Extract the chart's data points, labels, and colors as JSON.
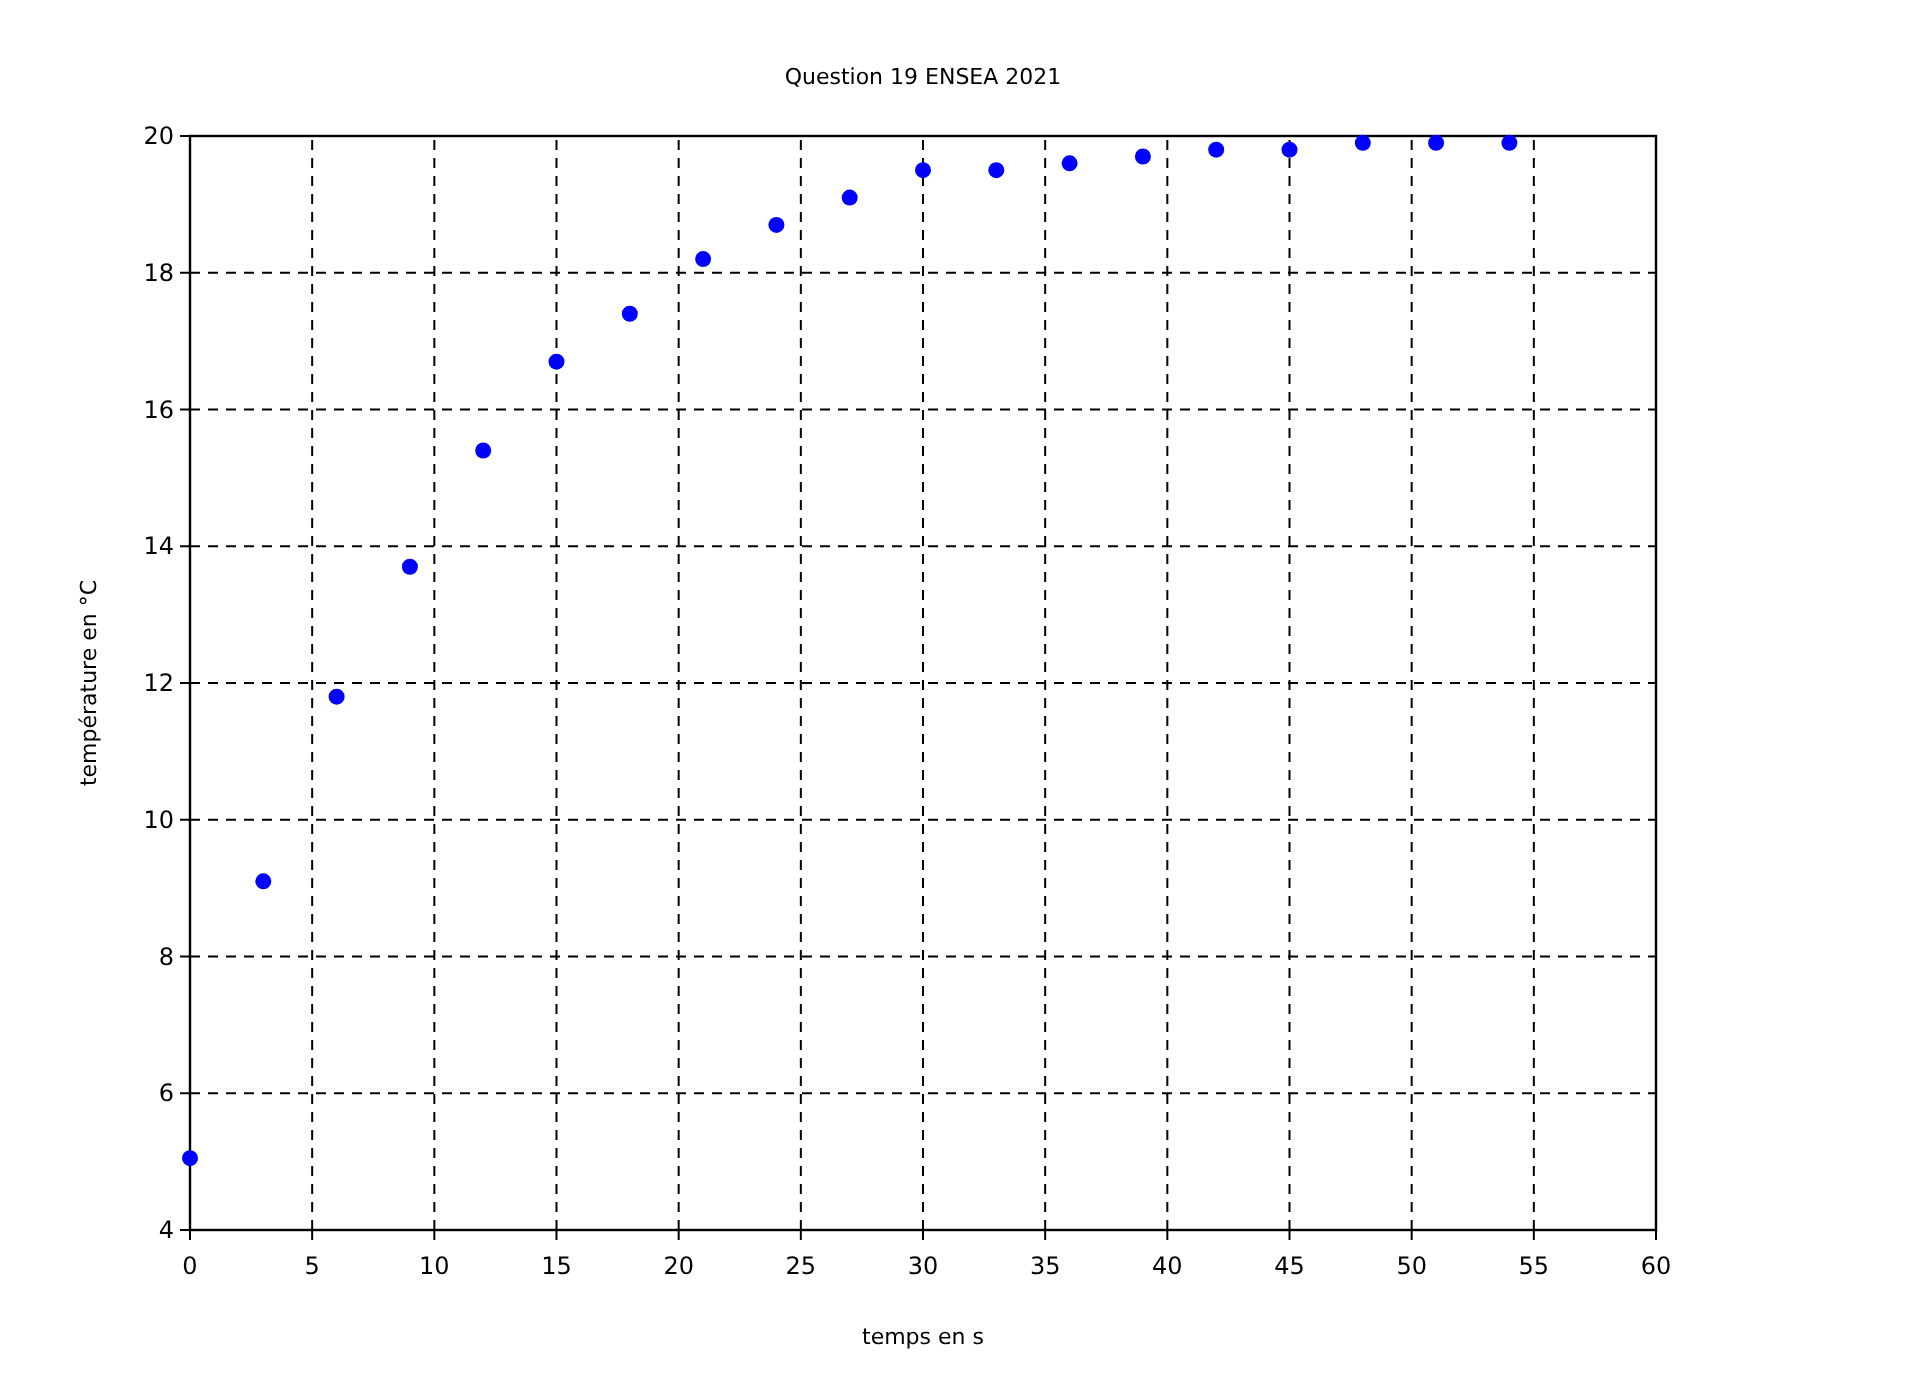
{
  "chart_data": {
    "type": "scatter",
    "title": "Question 19 ENSEA 2021",
    "xlabel": "temps en s",
    "ylabel": "température en °C",
    "x": [
      0,
      3,
      6,
      9,
      12,
      15,
      18,
      21,
      24,
      27,
      30,
      33,
      36,
      39,
      42,
      45,
      48,
      51,
      54
    ],
    "series": [
      {
        "color": "#0000ff",
        "values": [
          5.05,
          9.1,
          11.8,
          13.7,
          15.4,
          16.7,
          17.4,
          18.2,
          18.7,
          19.1,
          19.5,
          19.5,
          19.6,
          19.7,
          19.8,
          19.8,
          19.9,
          19.9,
          19.9
        ]
      }
    ],
    "xlim": [
      0,
      60
    ],
    "xticks": [
      0,
      5,
      10,
      15,
      20,
      25,
      30,
      35,
      40,
      45,
      50,
      55,
      60
    ],
    "ylim": [
      4,
      20
    ],
    "yticks": [
      4,
      6,
      8,
      10,
      12,
      14,
      16,
      18,
      20
    ],
    "grid": true,
    "marker": "circle"
  }
}
